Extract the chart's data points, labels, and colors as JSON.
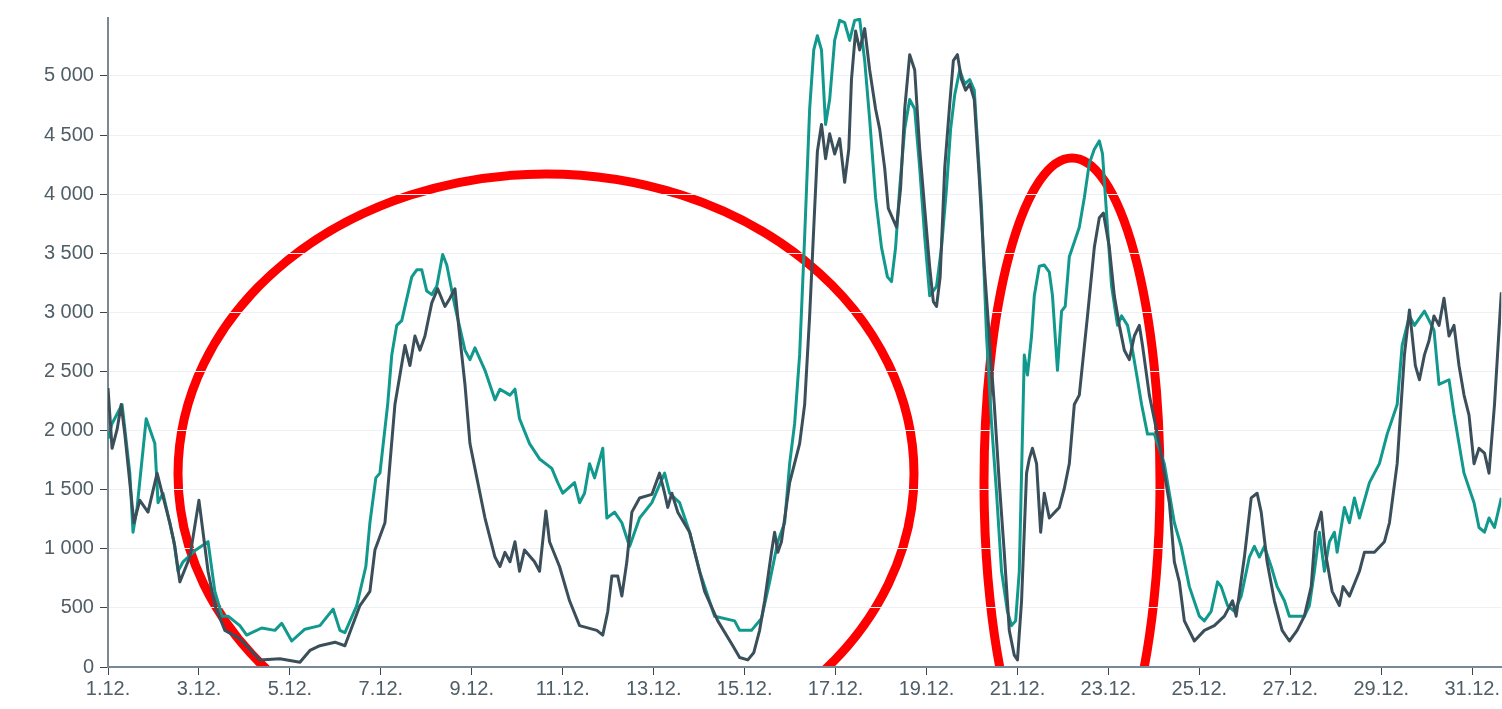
{
  "chart_data": {
    "type": "line",
    "xlim": [
      "--12-01T00:00",
      "--12-31T15:22"
    ],
    "ylim": [
      0,
      5490
    ],
    "xticks": [
      {
        "value": "--12-01",
        "label": "1.12."
      },
      {
        "value": "--12-03",
        "label": "3.12."
      },
      {
        "value": "--12-05",
        "label": "5.12."
      },
      {
        "value": "--12-07",
        "label": "7.12."
      },
      {
        "value": "--12-09",
        "label": "9.12."
      },
      {
        "value": "--12-11",
        "label": "11.12."
      },
      {
        "value": "--12-13",
        "label": "13.12."
      },
      {
        "value": "--12-15",
        "label": "15.12."
      },
      {
        "value": "--12-17",
        "label": "17.12."
      },
      {
        "value": "--12-19",
        "label": "19.12."
      },
      {
        "value": "--12-21",
        "label": "21.12."
      },
      {
        "value": "--12-23",
        "label": "23.12."
      },
      {
        "value": "--12-25",
        "label": "25.12."
      },
      {
        "value": "--12-27",
        "label": "27.12."
      },
      {
        "value": "--12-29",
        "label": "29.12."
      },
      {
        "value": "--12-31",
        "label": "31.12."
      }
    ],
    "yticks": [
      0,
      500,
      {
        "value": 1000,
        "label": "1 000"
      },
      {
        "value": 1500,
        "label": "1 500"
      },
      {
        "value": 2000,
        "label": "2 000"
      },
      {
        "value": 2500,
        "label": "2 500"
      },
      {
        "value": 3000,
        "label": "3 000"
      },
      {
        "value": 3500,
        "label": "3 500"
      },
      {
        "value": 4000,
        "label": "4 000"
      },
      {
        "value": 4500,
        "label": "4 500"
      },
      {
        "value": 5000,
        "label": "5 000"
      }
    ],
    "grid": "y",
    "legend": false,
    "marker": "none",
    "line_style": "solid",
    "series": [
      {
        "color": "#3b4f5b",
        "x": [
          "--12-01T00:00",
          "--12-01T02:10",
          "--12-01T04:48",
          "--12-01T06:58",
          "--12-01T08:53",
          "--12-01T11:31",
          "--12-01T13:41",
          "--12-01T16:48",
          "--12-01T21:07",
          "--12-02T01:55",
          "--12-02T04:34",
          "--12-02T08:38",
          "--12-02T11:17",
          "--12-02T13:55",
          "--12-02T19:12",
          "--12-03T00:00",
          "--12-03T04:48",
          "--12-03T08:24",
          "--12-03T13:41",
          "--12-03T21:36",
          "--12-04T08:10",
          "--12-04T18:43",
          "--12-05T05:17",
          "--12-05T10:34",
          "--12-05T15:50",
          "--12-05T23:46",
          "--12-06T05:02",
          "--12-06T12:58",
          "--12-06T18:14",
          "--12-06T20:53",
          "--12-07T02:10",
          "--12-07T04:48",
          "--12-07T07:26",
          "--12-07T10:05",
          "--12-07T12:43",
          "--12-07T15:22",
          "--12-07T18:00",
          "--12-07T20:38",
          "--12-07T23:17",
          "--12-08T02:53",
          "--12-08T06:00",
          "--12-08T09:50",
          "--12-08T12:29",
          "--12-08T15:07",
          "--12-08T17:02",
          "--12-08T20:24",
          "--12-08T23:02",
          "--12-09T02:10",
          "--12-09T06:58",
          "--12-09T12:14",
          "--12-09T14:53",
          "--12-09T17:31",
          "--12-09T20:10",
          "--12-09T22:48",
          "--12-10T01:12",
          "--12-10T03:50",
          "--12-10T09:07",
          "--12-10T11:46",
          "--12-10T15:07",
          "--12-10T17:02",
          "--12-10T22:19",
          "--12-11T03:36",
          "--12-11T08:53",
          "--12-11T18:00",
          "--12-11T21:07",
          "--12-11T23:46",
          "--12-12T01:55",
          "--12-12T05:02",
          "--12-12T07:12",
          "--12-12T09:50",
          "--12-12T12:29",
          "--12-12T16:34",
          "--12-12T23:02",
          "--12-13T03:07",
          "--12-13T05:46",
          "--12-13T07:26",
          "--12-13T09:36",
          "--12-13T12:43",
          "--12-13T18:58",
          "--12-14T02:53",
          "--12-14T09:50",
          "--12-14T17:46",
          "--12-14T21:22",
          "--12-15T01:41",
          "--12-15T04:48",
          "--12-15T07:55",
          "--12-15T10:34",
          "--12-15T14:10",
          "--12-15T15:50",
          "--12-15T17:31",
          "--12-15T19:26",
          "--12-15T23:46",
          "--12-16T05:02",
          "--12-16T07:41",
          "--12-16T10:19",
          "--12-16T12:58",
          "--12-16T14:24",
          "--12-16T16:34",
          "--12-16T18:43",
          "--12-16T20:53",
          "--12-16T23:31",
          "--12-17T02:10",
          "--12-17T04:48",
          "--12-17T06:58",
          "--12-17T08:24",
          "--12-17T10:34",
          "--12-17T12:43",
          "--12-17T15:22",
          "--12-17T18:00",
          "--12-17T21:07",
          "--12-17T23:17",
          "--12-18T01:55",
          "--12-18T03:50",
          "--12-18T08:10",
          "--12-18T10:19",
          "--12-18T12:29",
          "--12-18T15:07",
          "--12-18T17:46",
          "--12-18T20:24",
          "--12-18T23:02",
          "--12-19T01:41",
          "--12-19T03:36",
          "--12-19T05:17",
          "--12-19T07:12",
          "--12-19T09:36",
          "--12-19T12:14",
          "--12-19T14:10",
          "--12-19T16:19",
          "--12-19T18:29",
          "--12-19T20:38",
          "--12-19T22:48",
          "--12-20T01:12",
          "--12-20T03:50",
          "--12-20T06:29",
          "--12-20T09:07",
          "--12-20T11:46",
          "--12-20T14:24",
          "--12-20T17:02",
          "--12-20T19:41",
          "--12-20T22:19",
          "--12-21T00:00",
          "--12-21T02:10",
          "--12-21T04:48",
          "--12-21T06:14",
          "--12-21T07:55",
          "--12-21T10:05",
          "--12-21T12:14",
          "--12-21T14:10",
          "--12-21T16:48",
          "--12-21T22:05",
          "--12-22T00:43",
          "--12-22T03:22",
          "--12-22T06:00",
          "--12-22T08:38",
          "--12-22T12:58",
          "--12-22T16:34",
          "--12-22T19:12",
          "--12-22T21:22",
          "--12-23T00:29",
          "--12-23T03:07",
          "--12-23T05:46",
          "--12-23T08:24",
          "--12-23T11:02",
          "--12-23T13:41",
          "--12-23T16:19",
          "--12-23T18:00",
          "--12-23T21:36",
          "--12-24T02:53",
          "--12-24T08:10",
          "--12-24T10:48",
          "--12-24T13:26",
          "--12-24T16:05",
          "--12-24T21:22",
          "--12-25T02:38",
          "--12-25T07:55",
          "--12-25T13:12",
          "--12-25T17:31",
          "--12-25T19:26",
          "--12-25T23:46",
          "--12-26T03:22",
          "--12-26T06:29",
          "--12-26T08:38",
          "--12-26T11:46",
          "--12-26T15:36",
          "--12-26T19:41",
          "--12-26T23:31",
          "--12-27T03:36",
          "--12-27T07:26",
          "--12-27T11:02",
          "--12-27T13:12",
          "--12-27T16:19",
          "--12-27T18:29",
          "--12-27T22:05",
          "--12-28T01:55",
          "--12-28T03:50",
          "--12-28T07:12",
          "--12-28T12:29",
          "--12-28T15:07",
          "--12-28T20:24",
          "--12-29T01:41",
          "--12-29T04:19",
          "--12-29T08:24",
          "--12-29T12:14",
          "--12-29T14:53",
          "--12-29T18:00",
          "--12-29T20:10",
          "--12-29T22:48",
          "--12-30T01:12",
          "--12-30T03:50",
          "--12-30T06:29",
          "--12-30T09:07",
          "--12-30T11:46",
          "--12-30T14:24",
          "--12-30T17:02",
          "--12-30T19:41",
          "--12-30T22:19",
          "--12-31T00:58",
          "--12-31T03:36",
          "--12-31T06:29",
          "--12-31T08:53",
          "--12-31T11:46",
          "--12-31T15:22"
        ],
        "values": [
          2360,
          1850,
          2010,
          2220,
          1970,
          1560,
          1220,
          1410,
          1310,
          1640,
          1470,
          1220,
          1020,
          720,
          930,
          1410,
          810,
          520,
          310,
          240,
          60,
          70,
          40,
          140,
          180,
          210,
          180,
          520,
          640,
          990,
          1220,
          1720,
          2220,
          2470,
          2720,
          2550,
          2800,
          2680,
          2800,
          3080,
          3200,
          3050,
          3120,
          3200,
          2890,
          2390,
          1890,
          1640,
          1260,
          930,
          850,
          970,
          890,
          1060,
          810,
          990,
          890,
          810,
          1320,
          1060,
          850,
          560,
          350,
          310,
          270,
          470,
          770,
          770,
          600,
          890,
          1310,
          1430,
          1460,
          1640,
          1470,
          1350,
          1470,
          1310,
          1140,
          640,
          390,
          180,
          80,
          60,
          120,
          310,
          560,
          970,
          1140,
          970,
          1060,
          1560,
          1890,
          2220,
          2970,
          3880,
          4360,
          4590,
          4300,
          4510,
          4340,
          4470,
          4100,
          4380,
          4970,
          5380,
          5220,
          5400,
          5050,
          4720,
          4550,
          4220,
          3880,
          3720,
          4050,
          4720,
          5180,
          5050,
          4380,
          3880,
          3380,
          3090,
          3050,
          3300,
          4220,
          4760,
          5130,
          5180,
          4970,
          4880,
          4930,
          4800,
          4140,
          3390,
          2800,
          2220,
          1560,
          970,
          310,
          100,
          60,
          560,
          1640,
          1760,
          1850,
          1720,
          1140,
          1470,
          1260,
          1350,
          1510,
          1720,
          2220,
          2300,
          2970,
          3550,
          3800,
          3840,
          3550,
          3140,
          2890,
          2680,
          2600,
          2800,
          2890,
          2720,
          2300,
          1890,
          1390,
          890,
          720,
          390,
          220,
          310,
          350,
          430,
          560,
          430,
          930,
          1430,
          1470,
          1310,
          890,
          560,
          310,
          220,
          310,
          430,
          680,
          1140,
          1310,
          970,
          640,
          520,
          680,
          600,
          810,
          970,
          970,
          1060,
          1220,
          1720,
          2640,
          3020,
          2550,
          2430,
          2640,
          2760,
          2970,
          2890,
          3120,
          2800,
          2890,
          2550,
          2300,
          2130,
          1720,
          1850,
          1810,
          1640,
          2220,
          3170
        ]
      },
      {
        "color": "#12998e",
        "x": [
          "--12-01T00:00",
          "--12-01T02:10",
          "--12-01T07:26",
          "--12-01T11:31",
          "--12-01T13:12",
          "--12-01T15:22",
          "--12-01T20:10",
          "--12-02T00:43",
          "--12-02T02:24",
          "--12-02T05:02",
          "--12-02T10:48",
          "--12-02T12:58",
          "--12-02T15:36",
          "--12-02T22:19",
          "--12-03T04:48",
          "--12-03T08:24",
          "--12-03T12:14",
          "--12-03T15:22",
          "--12-03T21:36",
          "--12-04T01:12",
          "--12-04T09:07",
          "--12-04T16:05",
          "--12-04T19:41",
          "--12-05T00:58",
          "--12-05T07:55",
          "--12-05T15:50",
          "--12-05T22:48",
          "--12-06T02:24",
          "--12-06T05:02",
          "--12-06T11:17",
          "--12-06T16:05",
          "--12-06T18:14",
          "--12-06T21:22",
          "--12-06T23:31",
          "--12-07T03:36",
          "--12-07T05:46",
          "--12-07T08:24",
          "--12-07T11:02",
          "--12-07T16:19",
          "--12-07T18:58",
          "--12-07T21:36",
          "--12-08T00:14",
          "--12-08T02:53",
          "--12-08T05:31",
          "--12-08T08:38",
          "--12-08T10:48",
          "--12-08T15:07",
          "--12-08T20:24",
          "--12-08T23:02",
          "--12-09T01:41",
          "--12-09T06:58",
          "--12-09T12:14",
          "--12-09T14:53",
          "--12-09T20:10",
          "--12-09T22:48",
          "--12-10T01:12",
          "--12-10T06:29",
          "--12-10T11:46",
          "--12-10T18:14",
          "--12-10T21:22",
          "--12-11T00:00",
          "--12-11T06:14",
          "--12-11T08:53",
          "--12-11T11:31",
          "--12-11T14:10",
          "--12-11T16:48",
          "--12-11T21:07",
          "--12-11T23:17",
          "--12-12T03:22",
          "--12-12T07:12",
          "--12-12T11:17",
          "--12-12T16:34",
          "--12-12T23:02",
          "--12-13T05:46",
          "--12-13T08:24",
          "--12-13T13:41",
          "--12-13T18:58",
          "--12-14T00:14",
          "--12-14T04:34",
          "--12-14T08:10",
          "--12-14T18:43",
          "--12-14T21:22",
          "--12-15T03:36",
          "--12-15T08:53",
          "--12-15T13:12",
          "--12-15T17:31",
          "--12-15T21:07",
          "--12-15T23:46",
          "--12-16T02:24",
          "--12-16T05:02",
          "--12-16T07:41",
          "--12-16T10:19",
          "--12-16T12:29",
          "--12-16T14:24",
          "--12-16T16:34",
          "--12-16T18:43",
          "--12-16T20:53",
          "--12-16T23:31",
          "--12-17T02:10",
          "--12-17T04:48",
          "--12-17T07:26",
          "--12-17T10:05",
          "--12-17T12:43",
          "--12-17T15:22",
          "--12-17T18:00",
          "--12-17T21:07",
          "--12-18T00:14",
          "--12-18T03:22",
          "--12-18T05:31",
          "--12-18T07:41",
          "--12-18T09:50",
          "--12-18T12:29",
          "--12-18T15:07",
          "--12-18T17:46",
          "--12-18T20:24",
          "--12-18T23:02",
          "--12-19T01:41",
          "--12-19T05:17",
          "--12-19T07:55",
          "--12-19T10:34",
          "--12-19T12:43",
          "--12-19T14:53",
          "--12-19T17:31",
          "--12-19T20:10",
          "--12-19T22:48",
          "--12-20T01:12",
          "--12-20T05:02",
          "--12-20T07:41",
          "--12-20T10:19",
          "--12-20T12:58",
          "--12-20T15:36",
          "--12-20T18:43",
          "--12-20T20:53",
          "--12-20T23:02",
          "--12-21T00:58",
          "--12-21T03:36",
          "--12-21T05:17",
          "--12-21T07:26",
          "--12-21T08:53",
          "--12-21T11:31",
          "--12-21T14:10",
          "--12-21T16:48",
          "--12-21T18:29",
          "--12-21T21:07",
          "--12-21T23:17",
          "--12-22T01:12",
          "--12-22T03:22",
          "--12-22T08:38",
          "--12-22T11:17",
          "--12-22T13:55",
          "--12-22T16:34",
          "--12-22T19:12",
          "--12-22T20:53",
          "--12-22T23:31",
          "--12-23T01:41",
          "--12-23T04:48",
          "--12-23T06:58",
          "--12-23T10:05",
          "--12-23T12:43",
          "--12-23T15:22",
          "--12-23T17:31",
          "--12-23T20:38",
          "--12-24T00:14",
          "--12-24T05:31",
          "--12-24T10:48",
          "--12-24T14:24",
          "--12-24T18:43",
          "--12-25T00:00",
          "--12-25T02:38",
          "--12-25T06:14",
          "--12-25T09:36",
          "--12-25T11:31",
          "--12-25T14:53",
          "--12-25T18:29",
          "--12-25T22:05",
          "--12-26T02:24",
          "--12-26T05:02",
          "--12-26T07:41",
          "--12-26T10:19",
          "--12-26T13:55",
          "--12-26T17:02",
          "--12-26T20:53",
          "--12-26T23:31",
          "--12-27T07:26",
          "--12-27T10:05",
          "--12-27T12:43",
          "--12-27T15:22",
          "--12-27T18:00",
          "--12-27T20:38",
          "--12-27T23:17",
          "--12-28T00:43",
          "--12-28T04:34",
          "--12-28T07:12",
          "--12-28T09:50",
          "--12-28T12:29",
          "--12-28T17:46",
          "--12-28T23:02",
          "--12-29T03:07",
          "--12-29T08:24",
          "--12-29T11:02",
          "--12-29T14:53",
          "--12-29T17:31",
          "--12-29T22:48",
          "--12-30T03:50",
          "--12-30T06:29",
          "--12-30T11:46",
          "--12-30T14:24",
          "--12-30T19:41",
          "--12-31T00:58",
          "--12-31T03:36",
          "--12-31T06:29",
          "--12-31T08:53",
          "--12-31T11:46",
          "--12-31T15:22"
        ],
        "values": [
          1930,
          2060,
          2220,
          1640,
          1140,
          1350,
          2100,
          1890,
          1390,
          1470,
          1060,
          810,
          890,
          990,
          1060,
          640,
          430,
          430,
          350,
          270,
          330,
          310,
          370,
          220,
          320,
          350,
          490,
          310,
          290,
          520,
          850,
          1220,
          1600,
          1640,
          2220,
          2640,
          2890,
          2930,
          3300,
          3360,
          3360,
          3180,
          3150,
          3220,
          3490,
          3400,
          3050,
          2680,
          2600,
          2700,
          2510,
          2260,
          2350,
          2300,
          2350,
          2100,
          1890,
          1760,
          1680,
          1560,
          1470,
          1560,
          1390,
          1470,
          1720,
          1600,
          1850,
          1260,
          1310,
          1220,
          1020,
          1260,
          1390,
          1640,
          1470,
          1390,
          1140,
          810,
          600,
          430,
          390,
          310,
          310,
          410,
          720,
          1060,
          1220,
          1720,
          2060,
          2640,
          3640,
          4720,
          5220,
          5340,
          5220,
          4590,
          4800,
          5300,
          5470,
          5450,
          5300,
          5470,
          5480,
          5130,
          4630,
          3970,
          3550,
          3300,
          3260,
          3550,
          4050,
          4550,
          4800,
          4720,
          4220,
          3640,
          3140,
          3220,
          3550,
          4050,
          4550,
          4840,
          5050,
          4930,
          4970,
          4880,
          3890,
          2800,
          2060,
          1470,
          810,
          470,
          350,
          390,
          810,
          2640,
          2470,
          2800,
          3140,
          3390,
          3400,
          3340,
          3140,
          2510,
          3010,
          3050,
          3470,
          3720,
          3970,
          4260,
          4380,
          4450,
          4340,
          3720,
          3220,
          2890,
          2970,
          2890,
          2680,
          2430,
          2220,
          1970,
          1970,
          1720,
          1220,
          1020,
          680,
          430,
          390,
          470,
          720,
          680,
          520,
          470,
          600,
          930,
          1020,
          930,
          1020,
          850,
          680,
          560,
          430,
          430,
          520,
          810,
          1140,
          810,
          1060,
          1140,
          970,
          1350,
          1220,
          1430,
          1260,
          1560,
          1720,
          1970,
          2220,
          2720,
          2970,
          2890,
          3010,
          2850,
          2390,
          2430,
          2140,
          1640,
          1390,
          1180,
          1140,
          1260,
          1180,
          1430
        ]
      }
    ]
  }
}
